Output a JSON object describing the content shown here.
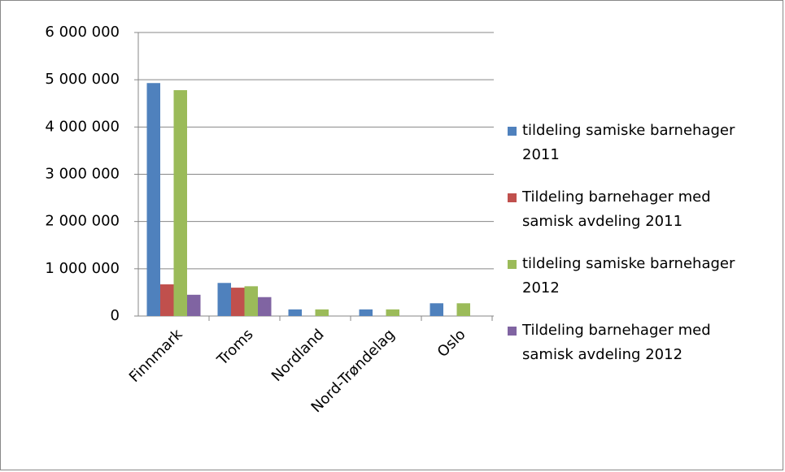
{
  "chart_data": {
    "type": "bar",
    "categories": [
      "Finnmark",
      "Troms",
      "Nordland",
      "Nord-Trøndelag",
      "Oslo"
    ],
    "series": [
      {
        "name": "tildeling samiske barnehager 2011",
        "color": "#4f81bd",
        "values": [
          4930000,
          700000,
          140000,
          140000,
          270000
        ]
      },
      {
        "name": "Tildeling barnehager med samisk avdeling 2011",
        "color": "#c0504d",
        "values": [
          670000,
          600000,
          0,
          0,
          0
        ]
      },
      {
        "name": "tildeling samiske barnehager 2012",
        "color": "#9bbb59",
        "values": [
          4780000,
          630000,
          140000,
          140000,
          270000
        ]
      },
      {
        "name": "Tildeling barnehager med samisk avdeling 2012",
        "color": "#8064a2",
        "values": [
          450000,
          400000,
          0,
          0,
          0
        ]
      }
    ],
    "ylim": [
      0,
      6000000
    ],
    "yticks": [
      0,
      {
        "value": 1000000,
        "label": "1 000 000"
      },
      {
        "value": 2000000,
        "label": "2 000 000"
      },
      {
        "value": 3000000,
        "label": "3 000 000"
      },
      {
        "value": 4000000,
        "label": "4 000 000"
      },
      {
        "value": 5000000,
        "label": "5 000 000"
      },
      {
        "value": 6000000,
        "label": "6 000 000"
      }
    ],
    "grid": true,
    "legend": "right"
  }
}
